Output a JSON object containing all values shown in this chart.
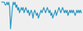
{
  "y": [
    2,
    2,
    2,
    2,
    1,
    1,
    2,
    1,
    2,
    0,
    -8,
    -4,
    0,
    2,
    1,
    2,
    0,
    1,
    -1,
    0,
    -2,
    -1,
    0,
    -1,
    0,
    -2,
    -1,
    0,
    -1,
    -2,
    -1,
    -3,
    -2,
    -1,
    -2,
    -4,
    -2,
    -1,
    -2,
    -3,
    -2,
    -4,
    -3,
    -2,
    -1,
    -2,
    -1,
    0,
    -1,
    -2,
    -1,
    0,
    -1,
    -2,
    -1,
    -3,
    -2,
    -4,
    -3,
    -2,
    -1,
    -3,
    -2,
    -1,
    0,
    -1,
    -2,
    -1,
    0,
    -1,
    -2,
    -1,
    -2,
    -1,
    -3,
    -2,
    -1,
    -2,
    -1,
    -2,
    -1,
    -2,
    -3,
    -2,
    -1,
    -2,
    -1,
    -2,
    -1,
    -2
  ],
  "line_color": "#2196c4",
  "background_color": "#efefef",
  "linewidth": 0.9
}
